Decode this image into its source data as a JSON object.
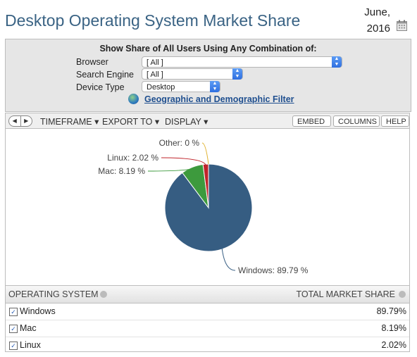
{
  "header": {
    "title": "Desktop Operating System Market Share",
    "date_line1": "June,",
    "date_line2": "2016"
  },
  "filters": {
    "heading": "Show Share of All Users Using Any Combination of:",
    "browser_label": "Browser",
    "browser_value": "[ All ]",
    "search_engine_label": "Search Engine",
    "search_engine_value": "[ All ]",
    "device_type_label": "Device Type",
    "device_type_value": "Desktop",
    "geo_link": "Geographic and Demographic Filter"
  },
  "toolbar": {
    "timeframe": "TIMEFRAME",
    "export_to": "EXPORT TO",
    "display": "DISPLAY",
    "embed": "EMBED",
    "columns": "COLUMNS",
    "help": "HELP"
  },
  "chart_data": {
    "type": "pie",
    "title": "",
    "slices": [
      {
        "label": "Windows: 89.79 %",
        "name": "Windows",
        "value": 89.79,
        "color": "#365d82"
      },
      {
        "label": "Mac: 8.19 %",
        "name": "Mac",
        "value": 8.19,
        "color": "#3d9a3d"
      },
      {
        "label": "Linux: 2.02 %",
        "name": "Linux",
        "value": 2.02,
        "color": "#c0242b"
      },
      {
        "label": "Other: 0 %",
        "name": "Other",
        "value": 0,
        "color": "#e0b12d"
      }
    ]
  },
  "table": {
    "col_os": "OPERATING SYSTEM",
    "col_share": "TOTAL MARKET SHARE",
    "rows": [
      {
        "name": "Windows",
        "share": "89.79%"
      },
      {
        "name": "Mac",
        "share": "8.19%"
      },
      {
        "name": "Linux",
        "share": "2.02%"
      }
    ]
  }
}
